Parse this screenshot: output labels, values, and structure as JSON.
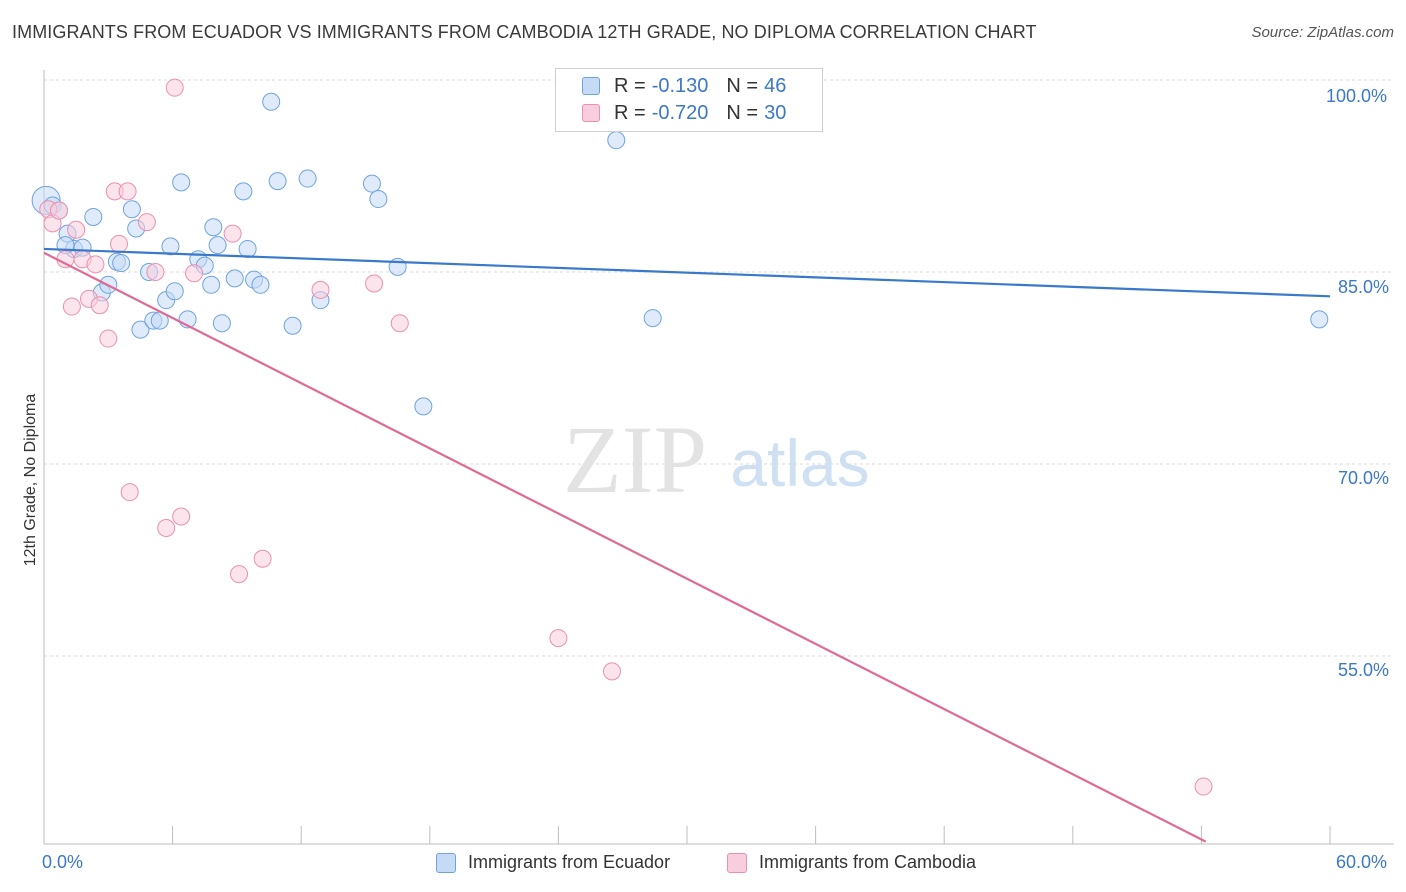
{
  "header": {
    "title": "IMMIGRANTS FROM ECUADOR VS IMMIGRANTS FROM CAMBODIA 12TH GRADE, NO DIPLOMA CORRELATION CHART",
    "source": "Source: ZipAtlas.com"
  },
  "watermark": {
    "zip": "ZIP",
    "atlas": "atlas"
  },
  "legend": {
    "rows": [
      {
        "r_label": "R =",
        "r_value": "-0.130",
        "n_label": "N =",
        "n_value": "46",
        "color": "#6fa3e0",
        "fill": "#c5dbf5"
      },
      {
        "r_label": "R =",
        "r_value": "-0.720",
        "n_label": "N =",
        "n_value": "30",
        "color": "#ec8fb0",
        "fill": "#f8cddd"
      }
    ]
  },
  "bottom_legend": {
    "items": [
      {
        "label": "Immigrants from Ecuador",
        "color": "#6fa3e0",
        "fill": "#c5dbf5"
      },
      {
        "label": "Immigrants from Cambodia",
        "color": "#ec8fb0",
        "fill": "#f8cddd"
      }
    ]
  },
  "axes": {
    "x_min_label": "0.0%",
    "x_max_label": "60.0%",
    "y_label": "12th Grade, No Diploma",
    "y_tick_labels": [
      "100.0%",
      "85.0%",
      "70.0%",
      "55.0%"
    ]
  },
  "chart_data": {
    "type": "scatter",
    "title": "IMMIGRANTS FROM ECUADOR VS IMMIGRANTS FROM CAMBODIA 12TH GRADE, NO DIPLOMA CORRELATION CHART",
    "xlabel": "",
    "ylabel": "12th Grade, No Diploma",
    "xlim": [
      0,
      60
    ],
    "ylim": [
      40,
      101
    ],
    "y_ticks": [
      55,
      70,
      85,
      100
    ],
    "grid": true,
    "legend_position": "top-center",
    "series": [
      {
        "name": "Immigrants from Ecuador",
        "color": "#6fa3e0",
        "fill": "#c5dbf5",
        "r": -0.13,
        "n": 46,
        "trend": {
          "x": [
            0,
            60
          ],
          "y": [
            86.8,
            83.1
          ]
        },
        "points": [
          [
            0.1,
            90.6
          ],
          [
            0.4,
            90.2
          ],
          [
            0.7,
            89.8
          ],
          [
            1.1,
            88.0
          ],
          [
            1.4,
            86.8
          ],
          [
            1.8,
            86.9
          ],
          [
            2.3,
            89.3
          ],
          [
            2.7,
            83.4
          ],
          [
            3.0,
            84.0
          ],
          [
            3.4,
            85.8
          ],
          [
            3.6,
            85.7
          ],
          [
            4.1,
            89.9
          ],
          [
            4.3,
            88.4
          ],
          [
            4.5,
            80.5
          ],
          [
            4.9,
            85.0
          ],
          [
            5.1,
            81.2
          ],
          [
            5.4,
            81.2
          ],
          [
            5.7,
            82.8
          ],
          [
            5.9,
            87.0
          ],
          [
            6.1,
            83.5
          ],
          [
            6.4,
            92.0
          ],
          [
            6.7,
            81.3
          ],
          [
            7.2,
            86.0
          ],
          [
            7.5,
            85.5
          ],
          [
            7.8,
            84.0
          ],
          [
            7.9,
            88.5
          ],
          [
            8.1,
            87.1
          ],
          [
            8.3,
            81.0
          ],
          [
            8.9,
            84.5
          ],
          [
            9.3,
            91.3
          ],
          [
            9.5,
            86.8
          ],
          [
            9.8,
            84.4
          ],
          [
            10.1,
            84.0
          ],
          [
            10.6,
            98.3
          ],
          [
            10.9,
            92.1
          ],
          [
            11.6,
            80.8
          ],
          [
            12.3,
            92.3
          ],
          [
            12.9,
            82.8
          ],
          [
            15.3,
            91.9
          ],
          [
            15.6,
            90.7
          ],
          [
            16.5,
            85.4
          ],
          [
            17.7,
            74.5
          ],
          [
            26.7,
            95.3
          ],
          [
            28.4,
            81.4
          ],
          [
            59.5,
            81.3
          ],
          [
            1.0,
            87.1
          ]
        ]
      },
      {
        "name": "Immigrants from Cambodia",
        "color": "#ec8fb0",
        "fill": "#f8cddd",
        "r": -0.72,
        "n": 30,
        "trend": {
          "x": [
            0,
            54.2
          ],
          "y": [
            86.5,
            40.5
          ]
        },
        "points": [
          [
            0.2,
            89.9
          ],
          [
            0.4,
            88.8
          ],
          [
            0.7,
            89.8
          ],
          [
            1.0,
            86.0
          ],
          [
            1.3,
            82.3
          ],
          [
            1.5,
            88.3
          ],
          [
            1.8,
            86.0
          ],
          [
            2.1,
            82.9
          ],
          [
            2.4,
            85.6
          ],
          [
            2.6,
            82.4
          ],
          [
            3.0,
            79.8
          ],
          [
            3.3,
            91.3
          ],
          [
            3.5,
            87.2
          ],
          [
            3.9,
            91.3
          ],
          [
            4.0,
            67.8
          ],
          [
            4.8,
            88.9
          ],
          [
            5.2,
            85.0
          ],
          [
            5.7,
            65.0
          ],
          [
            6.4,
            65.9
          ],
          [
            7.0,
            84.9
          ],
          [
            8.8,
            88.0
          ],
          [
            9.1,
            61.4
          ],
          [
            10.2,
            62.6
          ],
          [
            12.9,
            83.6
          ],
          [
            15.4,
            84.1
          ],
          [
            16.6,
            81.0
          ],
          [
            24.0,
            56.4
          ],
          [
            26.5,
            53.8
          ],
          [
            54.1,
            44.8
          ],
          [
            6.1,
            99.4
          ]
        ]
      }
    ]
  }
}
